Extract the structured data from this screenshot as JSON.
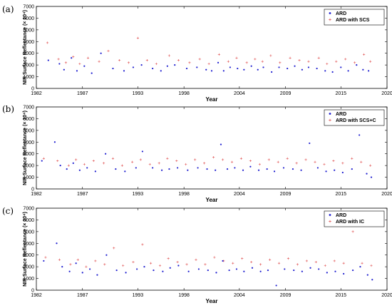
{
  "chart_data": [
    {
      "panel": "(a)",
      "type": "scatter",
      "xlabel": "Year",
      "ylabel": "NIR Surface Reflectance (× 10⁴)",
      "xlim": [
        1982,
        2020
      ],
      "ylim": [
        0,
        7000
      ],
      "xticks": [
        "1982",
        "1987",
        "1993",
        "1998",
        "2004",
        "2009",
        "2015",
        "2020"
      ],
      "yticks": [
        "0",
        "1000",
        "2000",
        "3000",
        "4000",
        "5000",
        "6000",
        "7000"
      ],
      "legend_position": "top-right",
      "series": [
        {
          "name": "ARD",
          "color": "#1f1fd0",
          "marker": "dot",
          "points": [
            [
              1983.3,
              2400
            ],
            [
              1984.5,
              2100
            ],
            [
              1985.0,
              1600
            ],
            [
              1985.8,
              2600
            ],
            [
              1986.4,
              1500
            ],
            [
              1987.2,
              1900
            ],
            [
              1988.0,
              1300
            ],
            [
              1989.0,
              3000
            ],
            [
              1990.3,
              1700
            ],
            [
              1991.5,
              1500
            ],
            [
              1992.5,
              1800
            ],
            [
              1993.4,
              2000
            ],
            [
              1994.6,
              1700
            ],
            [
              1995.5,
              1500
            ],
            [
              1996.2,
              1900
            ],
            [
              1997.0,
              2000
            ],
            [
              1998.3,
              1700
            ],
            [
              1999.4,
              1800
            ],
            [
              2000.4,
              1600
            ],
            [
              2001.0,
              1500
            ],
            [
              2001.7,
              2200
            ],
            [
              2002.3,
              1500
            ],
            [
              2003.0,
              1800
            ],
            [
              2003.8,
              1700
            ],
            [
              2004.5,
              1600
            ],
            [
              2005.3,
              1900
            ],
            [
              2006.0,
              1600
            ],
            [
              2006.6,
              1800
            ],
            [
              2007.5,
              1400
            ],
            [
              2008.3,
              1800
            ],
            [
              2009.2,
              1700
            ],
            [
              2010.0,
              1900
            ],
            [
              2010.8,
              1600
            ],
            [
              2011.5,
              1800
            ],
            [
              2012.4,
              1700
            ],
            [
              2013.3,
              1500
            ],
            [
              2014.1,
              1400
            ],
            [
              2015.0,
              1800
            ],
            [
              2015.8,
              1500
            ],
            [
              2016.7,
              2000
            ],
            [
              2017.4,
              1600
            ],
            [
              2018.0,
              1500
            ]
          ]
        },
        {
          "name": "ARD with SCS",
          "color": "#e05050",
          "marker": "plus",
          "points": [
            [
              1983.2,
              3900
            ],
            [
              1984.4,
              2500
            ],
            [
              1985.2,
              2200
            ],
            [
              1986.0,
              2700
            ],
            [
              1986.7,
              2100
            ],
            [
              1987.6,
              2600
            ],
            [
              1988.8,
              2300
            ],
            [
              1989.8,
              3200
            ],
            [
              1991.0,
              2400
            ],
            [
              1992.0,
              2200
            ],
            [
              1993.0,
              4300
            ],
            [
              1994.0,
              2400
            ],
            [
              1995.0,
              2100
            ],
            [
              1996.4,
              2800
            ],
            [
              1997.4,
              2400
            ],
            [
              1998.6,
              2200
            ],
            [
              1999.7,
              2500
            ],
            [
              2000.7,
              2100
            ],
            [
              2001.8,
              2900
            ],
            [
              2002.8,
              2300
            ],
            [
              2003.7,
              2600
            ],
            [
              2004.8,
              2200
            ],
            [
              2005.7,
              2500
            ],
            [
              2006.5,
              2300
            ],
            [
              2007.4,
              2800
            ],
            [
              2008.4,
              2200
            ],
            [
              2009.5,
              2600
            ],
            [
              2010.5,
              2400
            ],
            [
              2011.5,
              2300
            ],
            [
              2012.6,
              2600
            ],
            [
              2013.5,
              2100
            ],
            [
              2014.5,
              2300
            ],
            [
              2015.5,
              2500
            ],
            [
              2016.5,
              2200
            ],
            [
              2017.5,
              2900
            ],
            [
              2018.2,
              2300
            ]
          ]
        }
      ]
    },
    {
      "panel": "(b)",
      "type": "scatter",
      "xlabel": "Year",
      "ylabel": "NIR Surface Reflectance (× 10⁴)",
      "xlim": [
        1982,
        2020
      ],
      "ylim": [
        0,
        7000
      ],
      "xticks": [
        "1982",
        "1987",
        "1993",
        "1998",
        "2004",
        "2009",
        "2015",
        "2020"
      ],
      "yticks": [
        "0",
        "1000",
        "2000",
        "3000",
        "4000",
        "5000",
        "6000",
        "7000"
      ],
      "legend_position": "top-right",
      "series": [
        {
          "name": "ARD",
          "color": "#1f1fd0",
          "marker": "dot",
          "points": [
            [
              1982.6,
              2400
            ],
            [
              1984.0,
              4000
            ],
            [
              1984.6,
              2000
            ],
            [
              1985.3,
              1700
            ],
            [
              1986.0,
              2200
            ],
            [
              1986.7,
              1600
            ],
            [
              1987.5,
              1800
            ],
            [
              1988.4,
              1500
            ],
            [
              1989.5,
              3000
            ],
            [
              1990.6,
              1700
            ],
            [
              1991.6,
              1500
            ],
            [
              1992.8,
              1800
            ],
            [
              1993.5,
              3200
            ],
            [
              1994.6,
              1800
            ],
            [
              1995.6,
              1600
            ],
            [
              1996.4,
              1700
            ],
            [
              1997.3,
              1800
            ],
            [
              1998.4,
              1600
            ],
            [
              1999.5,
              1800
            ],
            [
              2000.5,
              1700
            ],
            [
              2001.4,
              1600
            ],
            [
              2002.0,
              3800
            ],
            [
              2002.7,
              1700
            ],
            [
              2003.5,
              1800
            ],
            [
              2004.4,
              1600
            ],
            [
              2005.2,
              1900
            ],
            [
              2006.1,
              1600
            ],
            [
              2007.0,
              1700
            ],
            [
              2007.8,
              1500
            ],
            [
              2008.8,
              1800
            ],
            [
              2009.8,
              1700
            ],
            [
              2010.7,
              1600
            ],
            [
              2011.6,
              3900
            ],
            [
              2012.5,
              1800
            ],
            [
              2013.4,
              1500
            ],
            [
              2014.3,
              1600
            ],
            [
              2015.2,
              1400
            ],
            [
              2016.2,
              1700
            ],
            [
              2017.0,
              4600
            ],
            [
              2017.8,
              1300
            ],
            [
              2018.3,
              1000
            ]
          ]
        },
        {
          "name": "ARD with SCS+C",
          "color": "#e05050",
          "marker": "plus",
          "points": [
            [
              1982.8,
              2600
            ],
            [
              1984.3,
              2400
            ],
            [
              1985.5,
              2000
            ],
            [
              1986.3,
              2500
            ],
            [
              1987.2,
              2100
            ],
            [
              1988.2,
              2400
            ],
            [
              1989.3,
              2200
            ],
            [
              1990.3,
              2600
            ],
            [
              1991.3,
              2000
            ],
            [
              1992.4,
              2300
            ],
            [
              1993.3,
              2500
            ],
            [
              1994.3,
              2100
            ],
            [
              1995.3,
              2200
            ],
            [
              1996.2,
              2600
            ],
            [
              1997.2,
              2400
            ],
            [
              1998.2,
              2100
            ],
            [
              1999.2,
              2500
            ],
            [
              2000.2,
              2200
            ],
            [
              2001.2,
              2700
            ],
            [
              2002.2,
              2500
            ],
            [
              2003.2,
              2300
            ],
            [
              2004.2,
              2600
            ],
            [
              2005.2,
              2400
            ],
            [
              2006.2,
              2100
            ],
            [
              2007.2,
              2500
            ],
            [
              2008.2,
              2300
            ],
            [
              2009.2,
              2600
            ],
            [
              2010.2,
              2200
            ],
            [
              2011.2,
              2500
            ],
            [
              2012.2,
              2300
            ],
            [
              2013.2,
              2100
            ],
            [
              2014.2,
              2400
            ],
            [
              2015.2,
              2200
            ],
            [
              2016.2,
              2600
            ],
            [
              2017.2,
              2300
            ],
            [
              2018.2,
              2000
            ]
          ]
        }
      ]
    },
    {
      "panel": "(c)",
      "type": "scatter",
      "xlabel": "Year",
      "ylabel": "NIR Surface Reflectance (× 10⁴)",
      "xlim": [
        1982,
        2020
      ],
      "ylim": [
        0,
        7000
      ],
      "xticks": [
        "1982",
        "1987",
        "1993",
        "1998",
        "2004",
        "2009",
        "2015",
        "2020"
      ],
      "yticks": [
        "0",
        "1000",
        "2000",
        "3000",
        "4000",
        "5000",
        "6000",
        "7000"
      ],
      "legend_position": "top-right",
      "series": [
        {
          "name": "ARD",
          "color": "#1f1fd0",
          "marker": "dot",
          "points": [
            [
              1982.8,
              2500
            ],
            [
              1984.2,
              4000
            ],
            [
              1984.8,
              2000
            ],
            [
              1985.6,
              1600
            ],
            [
              1986.3,
              2300
            ],
            [
              1987.0,
              1500
            ],
            [
              1987.8,
              1800
            ],
            [
              1988.6,
              1300
            ],
            [
              1989.6,
              3000
            ],
            [
              1990.7,
              1700
            ],
            [
              1991.7,
              1500
            ],
            [
              1992.9,
              1800
            ],
            [
              1993.7,
              2000
            ],
            [
              1994.7,
              1700
            ],
            [
              1995.7,
              1600
            ],
            [
              1996.5,
              1900
            ],
            [
              1997.4,
              2100
            ],
            [
              1998.5,
              1600
            ],
            [
              1999.6,
              1800
            ],
            [
              2000.6,
              1700
            ],
            [
              2001.5,
              1500
            ],
            [
              2002.2,
              2500
            ],
            [
              2002.9,
              1700
            ],
            [
              2003.7,
              1800
            ],
            [
              2004.5,
              1600
            ],
            [
              2005.4,
              1900
            ],
            [
              2006.3,
              1600
            ],
            [
              2007.1,
              1700
            ],
            [
              2008.0,
              400
            ],
            [
              2008.9,
              1800
            ],
            [
              2009.9,
              1700
            ],
            [
              2010.8,
              1600
            ],
            [
              2011.7,
              1900
            ],
            [
              2012.6,
              1800
            ],
            [
              2013.5,
              1500
            ],
            [
              2014.4,
              1600
            ],
            [
              2015.3,
              1400
            ],
            [
              2016.3,
              1700
            ],
            [
              2017.1,
              2000
            ],
            [
              2017.9,
              1300
            ],
            [
              2018.4,
              900
            ]
          ]
        },
        {
          "name": "ARD with IC",
          "color": "#e05050",
          "marker": "plus",
          "points": [
            [
              1983.0,
              2800
            ],
            [
              1984.5,
              2600
            ],
            [
              1985.7,
              2200
            ],
            [
              1986.5,
              2600
            ],
            [
              1987.4,
              2000
            ],
            [
              1988.4,
              2500
            ],
            [
              1989.4,
              2200
            ],
            [
              1990.4,
              3600
            ],
            [
              1991.4,
              2100
            ],
            [
              1992.5,
              2400
            ],
            [
              1993.5,
              3900
            ],
            [
              1994.4,
              2300
            ],
            [
              1995.4,
              2100
            ],
            [
              1996.3,
              2700
            ],
            [
              1997.3,
              2400
            ],
            [
              1998.3,
              2200
            ],
            [
              1999.3,
              2600
            ],
            [
              2000.3,
              2200
            ],
            [
              2001.3,
              2800
            ],
            [
              2002.3,
              2500
            ],
            [
              2003.3,
              2300
            ],
            [
              2004.3,
              2700
            ],
            [
              2005.3,
              2400
            ],
            [
              2006.3,
              2200
            ],
            [
              2007.3,
              2600
            ],
            [
              2008.3,
              2300
            ],
            [
              2009.3,
              2700
            ],
            [
              2010.3,
              2200
            ],
            [
              2011.3,
              2500
            ],
            [
              2012.3,
              2400
            ],
            [
              2013.3,
              2100
            ],
            [
              2014.3,
              2500
            ],
            [
              2015.3,
              2300
            ],
            [
              2016.3,
              5000
            ],
            [
              2017.3,
              2300
            ],
            [
              2018.3,
              2100
            ]
          ]
        }
      ]
    }
  ]
}
